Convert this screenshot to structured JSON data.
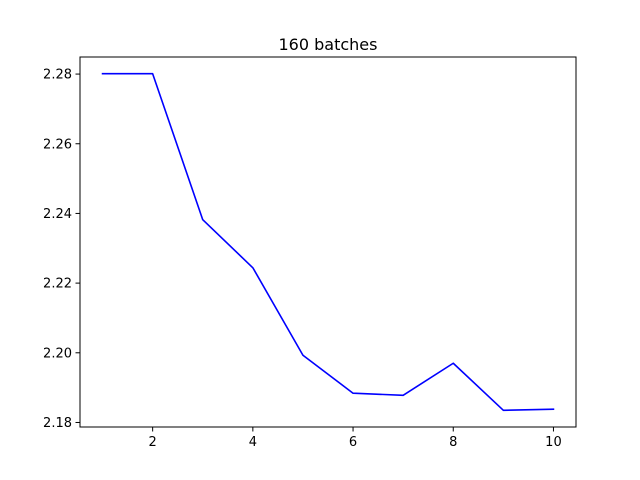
{
  "chart_data": {
    "type": "line",
    "title": "160 batches",
    "xlabel": "",
    "ylabel": "",
    "x": [
      1,
      2,
      3,
      4,
      5,
      6,
      7,
      8,
      9,
      10
    ],
    "series": [
      {
        "values": [
          2.2801,
          2.2801,
          2.2382,
          2.2244,
          2.1993,
          2.1884,
          2.1878,
          2.197,
          2.1835,
          2.1838
        ],
        "color": "#0000ff"
      }
    ],
    "xlim": [
      0.55,
      10.45
    ],
    "ylim": [
      2.1787,
      2.2849
    ],
    "xticks": [
      2,
      4,
      6,
      8,
      10
    ],
    "yticks": [
      2.18,
      2.2,
      2.22,
      2.24,
      2.26,
      2.28
    ],
    "ytick_labels": [
      "2.18",
      "2.20",
      "2.22",
      "2.24",
      "2.26",
      "2.28"
    ],
    "grid": false,
    "legend": "none"
  }
}
